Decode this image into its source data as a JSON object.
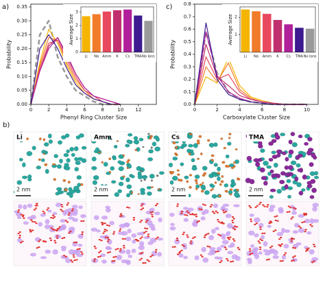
{
  "chart_data": [
    {
      "type": "line",
      "label": "a)",
      "xlabel": "Phenyl Ring Cluster Size",
      "ylabel": "Probability",
      "x": [
        0,
        1,
        2,
        3,
        4,
        5,
        6,
        7,
        8,
        9,
        10
      ],
      "xlim": [
        0,
        14
      ],
      "xticks": [
        0,
        2,
        4,
        6,
        8,
        10,
        12
      ],
      "ylim": [
        0,
        0.36
      ],
      "yticks": [
        {
          "value": 0,
          "label": "0.00"
        },
        0.05,
        {
          "value": 0.1,
          "label": "0.10"
        },
        0.15,
        {
          "value": 0.2,
          "label": "0.20"
        },
        0.25,
        {
          "value": 0.3,
          "label": "0.30"
        },
        0.35
      ],
      "series": [
        {
          "color": "#9a9a9a",
          "dash": true,
          "values": [
            0,
            0.25,
            0.3,
            0.17,
            0.1,
            0.05,
            0.03,
            0.01,
            0,
            0,
            0
          ]
        },
        {
          "color": "#f5b400",
          "values": [
            0,
            0.15,
            0.27,
            0.22,
            0.14,
            0.08,
            0.04,
            0.02,
            0.01,
            0,
            0
          ]
        },
        {
          "color": "#f07c2a",
          "values": [
            0,
            0.14,
            0.24,
            0.23,
            0.15,
            0.09,
            0.05,
            0.02,
            0.01,
            0,
            0
          ]
        },
        {
          "color": "#e8495f",
          "values": [
            0,
            0.13,
            0.22,
            0.23,
            0.16,
            0.1,
            0.05,
            0.03,
            0.01,
            0,
            0
          ]
        },
        {
          "color": "#c0306e",
          "values": [
            0,
            0.12,
            0.21,
            0.24,
            0.17,
            0.11,
            0.06,
            0.03,
            0.02,
            0.01,
            0
          ]
        },
        {
          "color": "#b0209a",
          "values": [
            0,
            0.12,
            0.2,
            0.24,
            0.18,
            0.11,
            0.06,
            0.03,
            0.02,
            0.01,
            0
          ]
        },
        {
          "color": "#3d1a8f",
          "values": [
            0,
            0.2,
            0.25,
            0.2,
            0.13,
            0.07,
            0.04,
            0.02,
            0.01,
            0,
            0
          ]
        }
      ]
    },
    {
      "type": "bar",
      "ylabel": "Average Size",
      "categories": [
        "Li",
        "Na",
        "Amm",
        "K",
        "Cs",
        "TMA",
        "No Ions"
      ],
      "values": [
        2.7,
        2.85,
        3.05,
        3.15,
        3.2,
        2.75,
        2.35
      ],
      "colors": [
        "#f5b400",
        "#f07c2a",
        "#e8495f",
        "#c0306e",
        "#b0209a",
        "#3d1a8f",
        "#9a9a9a"
      ],
      "ylim": [
        0,
        3.4
      ],
      "yticks": [
        0,
        1,
        2,
        3
      ]
    },
    {
      "type": "line",
      "label": "c)",
      "xlabel": "Carboxylate Cluster Size",
      "ylabel": "Probability",
      "x": [
        0,
        1,
        2,
        3,
        4,
        5,
        6,
        7,
        8,
        9,
        10
      ],
      "xlim": [
        0,
        11
      ],
      "xticks": [
        0,
        2,
        4,
        6,
        8,
        10
      ],
      "ylim": [
        0,
        0.8
      ],
      "yticks": [
        {
          "value": 0,
          "label": "0.0"
        },
        0.1,
        0.2,
        0.3,
        0.4,
        0.5,
        0.6,
        0.7,
        0.8
      ],
      "series": [
        {
          "color": "#9a9a9a",
          "dash": true,
          "values": [
            0,
            0.58,
            0.25,
            0.1,
            0.04,
            0.02,
            0.01,
            0,
            0,
            0,
            0
          ]
        },
        {
          "color": "#f5b400",
          "values": [
            0,
            0.22,
            0.17,
            0.37,
            0.15,
            0.06,
            0.03,
            0.01,
            0,
            0,
            0
          ]
        },
        {
          "color": "#f07c2a",
          "values": [
            0,
            0.3,
            0.18,
            0.33,
            0.12,
            0.05,
            0.02,
            0.01,
            0,
            0,
            0
          ]
        },
        {
          "color": "#e8495f",
          "values": [
            0,
            0.38,
            0.2,
            0.24,
            0.1,
            0.04,
            0.02,
            0.01,
            0,
            0,
            0
          ]
        },
        {
          "color": "#c0306e",
          "values": [
            0,
            0.48,
            0.22,
            0.15,
            0.07,
            0.04,
            0.02,
            0.01,
            0,
            0,
            0
          ]
        },
        {
          "color": "#b0209a",
          "values": [
            0,
            0.58,
            0.23,
            0.1,
            0.05,
            0.02,
            0.01,
            0,
            0,
            0,
            0
          ]
        },
        {
          "color": "#3d1a8f",
          "values": [
            0,
            0.65,
            0.2,
            0.08,
            0.04,
            0.02,
            0.01,
            0,
            0,
            0,
            0
          ]
        }
      ]
    },
    {
      "type": "bar",
      "ylabel": "Average Size",
      "categories": [
        "Li",
        "Na",
        "Amm",
        "K",
        "Cs",
        "TMA",
        "No Ions"
      ],
      "values": [
        2.45,
        2.35,
        2.2,
        1.85,
        1.6,
        1.4,
        1.35
      ],
      "colors": [
        "#f5b400",
        "#f07c2a",
        "#e8495f",
        "#c0306e",
        "#b0209a",
        "#3d1a8f",
        "#9a9a9a"
      ],
      "ylim": [
        0,
        2.6
      ],
      "yticks": [
        1,
        2
      ]
    }
  ],
  "panel_b": {
    "label": "b)",
    "images": [
      {
        "label": "Li",
        "scale": "2 nm"
      },
      {
        "label": "Amm",
        "scale": "2 nm"
      },
      {
        "label": "Cs",
        "scale": "2 nm"
      },
      {
        "label": "TMA",
        "scale": "2 nm"
      }
    ]
  }
}
